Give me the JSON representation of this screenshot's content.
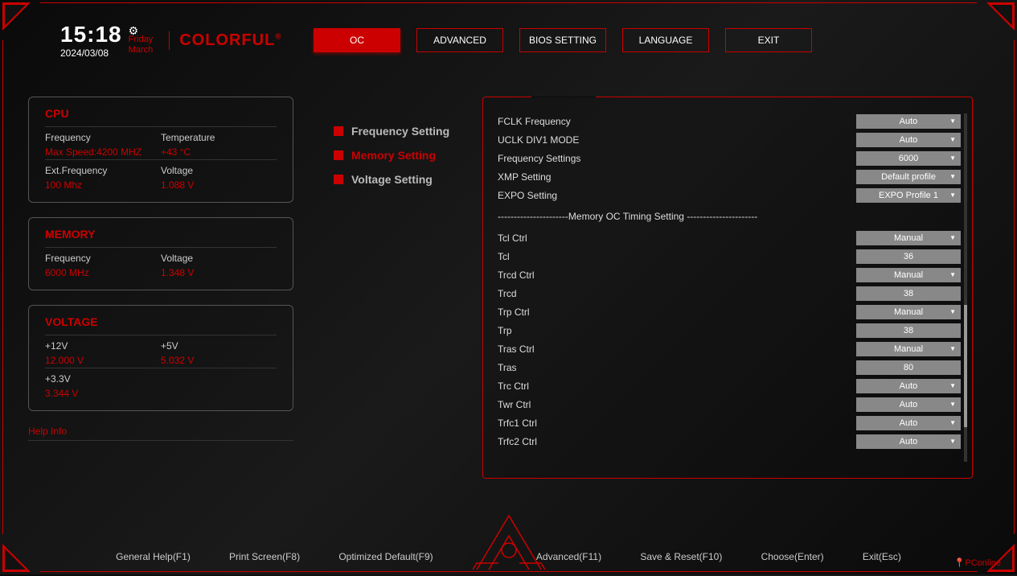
{
  "colors": {
    "accent": "#c00000",
    "bg": "#0a0a0a",
    "text": "#cccccc",
    "value": "#c00000",
    "control_bg": "#888888"
  },
  "header": {
    "time": "15:18",
    "date": "2024/03/08",
    "day": "Friday",
    "month": "March",
    "brand": "COLORFUL"
  },
  "nav": [
    {
      "label": "OC",
      "active": true
    },
    {
      "label": "ADVANCED",
      "active": false
    },
    {
      "label": "BIOS SETTING",
      "active": false
    },
    {
      "label": "LANGUAGE",
      "active": false
    },
    {
      "label": "EXIT",
      "active": false
    }
  ],
  "panels": {
    "cpu": {
      "title": "CPU",
      "rows": [
        [
          {
            "label": "Frequency",
            "value": "Max Speed:4200 MHZ"
          },
          {
            "label": "Temperature",
            "value": "+43 °C"
          }
        ],
        [
          {
            "label": "Ext.Frequency",
            "value": "100 Mhz"
          },
          {
            "label": "Voltage",
            "value": "1.088 V"
          }
        ]
      ]
    },
    "memory": {
      "title": "MEMORY",
      "rows": [
        [
          {
            "label": "Frequency",
            "value": "6000 MHz"
          },
          {
            "label": "Voltage",
            "value": "1.348 V"
          }
        ]
      ]
    },
    "voltage": {
      "title": "VOLTAGE",
      "rows": [
        [
          {
            "label": "+12V",
            "value": "12.000 V"
          },
          {
            "label": "+5V",
            "value": "5.032 V"
          }
        ],
        [
          {
            "label": "+3.3V",
            "value": "3.344 V"
          },
          {
            "label": "",
            "value": ""
          }
        ]
      ]
    }
  },
  "help_info": "Help Info",
  "categories": [
    {
      "label": "Frequency Setting",
      "active": false
    },
    {
      "label": "Memory Setting",
      "active": true
    },
    {
      "label": "Voltage Setting",
      "active": false
    }
  ],
  "section_divider": "----------------------Memory OC Timing Setting ----------------------",
  "settings": [
    {
      "label": "FCLK Frequency",
      "value": "Auto",
      "type": "dropdown"
    },
    {
      "label": "UCLK DIV1 MODE",
      "value": "Auto",
      "type": "dropdown"
    },
    {
      "label": "Frequency Settings",
      "value": "6000",
      "type": "dropdown"
    },
    {
      "label": "XMP Setting",
      "value": "Default profile",
      "type": "dropdown"
    },
    {
      "label": "EXPO Setting",
      "value": "EXPO Profile 1",
      "type": "dropdown"
    },
    {
      "divider": true
    },
    {
      "label": "Tcl Ctrl",
      "value": "Manual",
      "type": "dropdown"
    },
    {
      "label": "Tcl",
      "value": "36",
      "type": "value"
    },
    {
      "label": "Trcd Ctrl",
      "value": "Manual",
      "type": "dropdown"
    },
    {
      "label": "Trcd",
      "value": "38",
      "type": "value"
    },
    {
      "label": "Trp Ctrl",
      "value": "Manual",
      "type": "dropdown"
    },
    {
      "label": "Trp",
      "value": "38",
      "type": "value"
    },
    {
      "label": "Tras Ctrl",
      "value": "Manual",
      "type": "dropdown"
    },
    {
      "label": "Tras",
      "value": "80",
      "type": "value"
    },
    {
      "label": "Trc Ctrl",
      "value": "Auto",
      "type": "dropdown"
    },
    {
      "label": "Twr Ctrl",
      "value": "Auto",
      "type": "dropdown"
    },
    {
      "label": "Trfc1 Ctrl",
      "value": "Auto",
      "type": "dropdown"
    },
    {
      "label": "Trfc2 Ctrl",
      "value": "Auto",
      "type": "dropdown"
    }
  ],
  "scrollbar": {
    "thumb_top_pct": 55,
    "thumb_height_pct": 35
  },
  "footer": [
    "General Help(F1)",
    "Print Screen(F8)",
    "Optimized Default(F9)",
    "Advanced(F11)",
    "Save & Reset(F10)",
    "Choose(Enter)",
    "Exit(Esc)"
  ],
  "watermark": "PConline"
}
